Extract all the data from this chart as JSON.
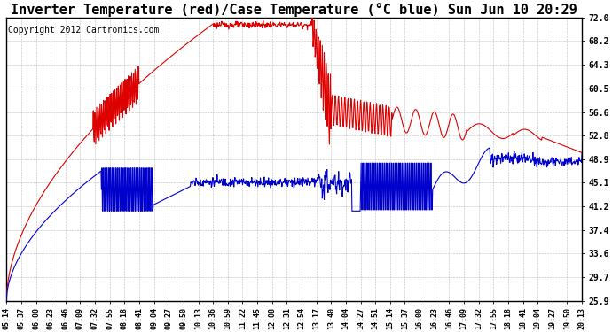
{
  "title": "Inverter Temperature (red)/Case Temperature (°C blue) Sun Jun 10 20:29",
  "copyright": "Copyright 2012 Cartronics.com",
  "yticks": [
    25.9,
    29.7,
    33.6,
    37.4,
    41.2,
    45.1,
    48.9,
    52.8,
    56.6,
    60.5,
    64.3,
    68.2,
    72.0
  ],
  "ylim": [
    25.9,
    72.0
  ],
  "xtick_labels": [
    "05:14",
    "05:37",
    "06:00",
    "06:23",
    "06:46",
    "07:09",
    "07:32",
    "07:55",
    "08:18",
    "08:41",
    "09:04",
    "09:27",
    "09:50",
    "10:13",
    "10:36",
    "10:59",
    "11:22",
    "11:45",
    "12:08",
    "12:31",
    "12:54",
    "13:17",
    "13:40",
    "14:04",
    "14:27",
    "14:51",
    "15:14",
    "15:37",
    "16:00",
    "16:23",
    "16:46",
    "17:09",
    "17:32",
    "17:55",
    "18:18",
    "18:41",
    "19:04",
    "19:27",
    "19:50",
    "20:13"
  ],
  "background_color": "#ffffff",
  "plot_bg_color": "#ffffff",
  "grid_color": "#bbbbbb",
  "title_fontsize": 11,
  "copyright_fontsize": 7,
  "red_line_color": "#dd0000",
  "blue_line_color": "#0000cc",
  "line_width": 0.8
}
